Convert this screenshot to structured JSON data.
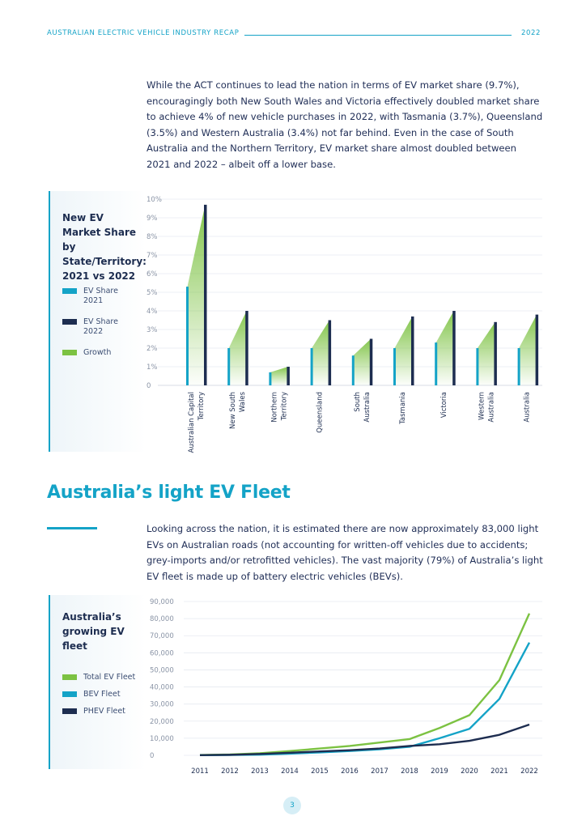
{
  "header": {
    "title": "AUSTRALIAN ELECTRIC VEHICLE INDUSTRY RECAP",
    "year": "2022"
  },
  "intro_paragraph": "While the ACT continues to lead the nation in terms of EV market share (9.7%), encouragingly both New South Wales and Victoria effectively doubled market share to achieve 4% of new vehicle purchases in 2022, with Tasmania (3.7%), Queensland (3.5%) and Western Australia (3.4%) not far behind. Even in the case of South Australia and the Northern Territory, EV market share almost doubled between 2021 and 2022 – albeit off a lower base.",
  "market_share_panel": {
    "title": "New EV Market Share by State/Territory: 2021 vs 2022",
    "legend": [
      {
        "label": "EV Share 2021",
        "color": "#14a3c7"
      },
      {
        "label": "EV Share 2022",
        "color": "#1d2d50"
      },
      {
        "label": "Growth",
        "color": "#7cc242"
      }
    ]
  },
  "section": {
    "title": "Australia’s light EV Fleet",
    "paragraph": "Looking across the nation, it is estimated there are now approximately 83,000 light EVs on Australian roads (not accounting for written-off vehicles due to accidents; grey-imports and/or retrofitted vehicles). The vast majority (79%) of Australia’s light EV fleet is made up of battery electric vehicles (BEVs)."
  },
  "fleet_panel": {
    "title": "Australia’s growing EV fleet",
    "legend": [
      {
        "label": "Total EV Fleet",
        "color": "#7cc242"
      },
      {
        "label": "BEV Fleet",
        "color": "#14a3c7"
      },
      {
        "label": "PHEV Fleet",
        "color": "#1d2d50"
      }
    ]
  },
  "chart_data": [
    {
      "type": "bar",
      "title": "New EV Market Share by State/Territory: 2021 vs 2022",
      "categories": [
        "Australian Capital Territory",
        "New South Wales",
        "Northern Territory",
        "Queensland",
        "South Australia",
        "Tasmania",
        "Victoria",
        "Western Australia",
        "Australia"
      ],
      "series": [
        {
          "name": "EV Share 2021",
          "values": [
            5.3,
            2.0,
            0.7,
            2.0,
            1.6,
            2.0,
            2.3,
            2.0,
            2.0
          ]
        },
        {
          "name": "EV Share 2022",
          "values": [
            9.7,
            4.0,
            1.0,
            3.5,
            2.5,
            3.7,
            4.0,
            3.4,
            3.8
          ]
        }
      ],
      "ytick_labels": [
        "0",
        "1%",
        "2%",
        "3%",
        "4%",
        "5%",
        "6%",
        "7%",
        "8%",
        "9%",
        "10%"
      ],
      "ylim": [
        0,
        10
      ]
    },
    {
      "type": "line",
      "title": "Australia’s growing EV fleet",
      "x": [
        "2011",
        "2012",
        "2013",
        "2014",
        "2015",
        "2016",
        "2017",
        "2018",
        "2019",
        "2020",
        "2021",
        "2022"
      ],
      "series": [
        {
          "name": "Total EV Fleet",
          "values": [
            200,
            500,
            1200,
            2500,
            4000,
            5500,
            7500,
            9500,
            16000,
            23500,
            44000,
            83000
          ]
        },
        {
          "name": "BEV Fleet",
          "values": [
            100,
            200,
            400,
            1000,
            1700,
            2500,
            3500,
            5000,
            10000,
            15500,
            33000,
            66000
          ]
        },
        {
          "name": "PHEV Fleet",
          "values": [
            100,
            300,
            800,
            1500,
            2300,
            3000,
            4000,
            5500,
            6500,
            8500,
            12000,
            18000
          ]
        }
      ],
      "ytick_labels": [
        "0",
        "10,000",
        "20,000",
        "30,000",
        "40,000",
        "50,000",
        "60,000",
        "70,000",
        "80,000",
        "90,000"
      ],
      "ylim": [
        0,
        90000
      ]
    }
  ],
  "page_number": "3"
}
